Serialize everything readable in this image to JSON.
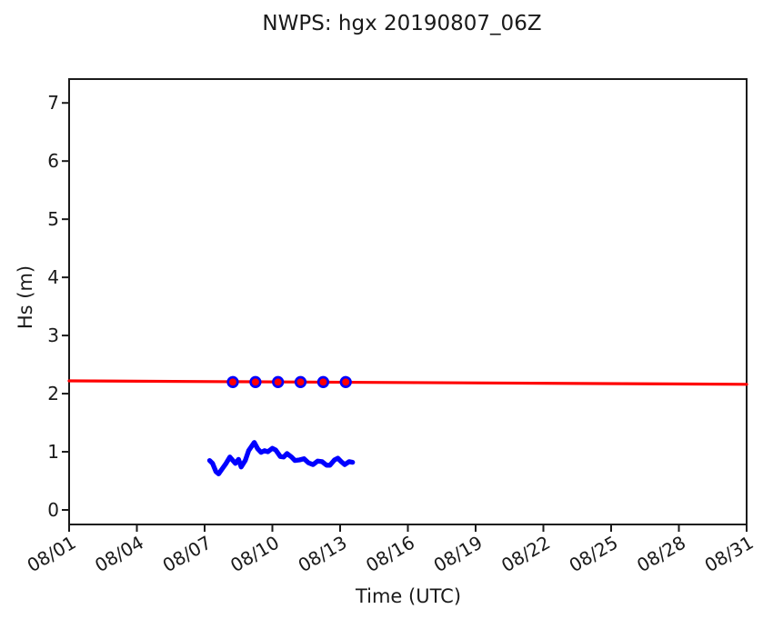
{
  "title": "NWPS: hgx 20190807_06Z",
  "chart_data": {
    "type": "line",
    "title": "NWPS: hgx 20190807_06Z",
    "xlabel": "Time (UTC)",
    "ylabel": "Hs (m)",
    "x_unit": "day of August 2019 (UTC)",
    "xlim": [
      1,
      31
    ],
    "ylim": [
      -0.25,
      7.41
    ],
    "grid": false,
    "legend_position": "none",
    "axis_color": "#1a1a1a",
    "x_ticks": [
      {
        "day": 1,
        "label": "08/01"
      },
      {
        "day": 4,
        "label": "08/04"
      },
      {
        "day": 7,
        "label": "08/07"
      },
      {
        "day": 10,
        "label": "08/10"
      },
      {
        "day": 13,
        "label": "08/13"
      },
      {
        "day": 16,
        "label": "08/16"
      },
      {
        "day": 19,
        "label": "08/19"
      },
      {
        "day": 22,
        "label": "08/22"
      },
      {
        "day": 25,
        "label": "08/25"
      },
      {
        "day": 28,
        "label": "08/28"
      },
      {
        "day": 31,
        "label": "08/31"
      }
    ],
    "y_ticks": [
      {
        "value": 0,
        "label": "0"
      },
      {
        "value": 1,
        "label": "1"
      },
      {
        "value": 2,
        "label": "2"
      },
      {
        "value": 3,
        "label": "3"
      },
      {
        "value": 4,
        "label": "4"
      },
      {
        "value": 5,
        "label": "5"
      },
      {
        "value": 6,
        "label": "6"
      },
      {
        "value": 7,
        "label": "7"
      }
    ],
    "series": [
      {
        "name": "forecast-hs-line",
        "kind": "line",
        "color": "#ff0000",
        "line_width": 3.2,
        "points": [
          [
            1,
            2.22
          ],
          [
            31,
            2.16
          ]
        ]
      },
      {
        "name": "forecast-hs-markers",
        "kind": "marker",
        "fill_color": "#ff0000",
        "edge_color": "#0000ff",
        "radius": 5.3,
        "edge_width": 2.7,
        "points": [
          [
            8.25,
            2.2
          ],
          [
            9.25,
            2.2
          ],
          [
            10.25,
            2.2
          ],
          [
            11.25,
            2.2
          ],
          [
            12.25,
            2.2
          ],
          [
            13.25,
            2.2
          ]
        ]
      },
      {
        "name": "observed-hs-line",
        "kind": "line",
        "color": "#0000ff",
        "line_width": 5.3,
        "points": [
          [
            7.22,
            0.85
          ],
          [
            7.35,
            0.8
          ],
          [
            7.5,
            0.66
          ],
          [
            7.62,
            0.62
          ],
          [
            7.8,
            0.72
          ],
          [
            7.95,
            0.8
          ],
          [
            8.12,
            0.91
          ],
          [
            8.36,
            0.8
          ],
          [
            8.5,
            0.87
          ],
          [
            8.62,
            0.74
          ],
          [
            8.8,
            0.85
          ],
          [
            8.95,
            1.02
          ],
          [
            9.2,
            1.16
          ],
          [
            9.35,
            1.05
          ],
          [
            9.5,
            0.99
          ],
          [
            9.65,
            1.02
          ],
          [
            9.8,
            1.0
          ],
          [
            10.0,
            1.06
          ],
          [
            10.15,
            1.03
          ],
          [
            10.35,
            0.92
          ],
          [
            10.5,
            0.91
          ],
          [
            10.65,
            0.97
          ],
          [
            10.85,
            0.91
          ],
          [
            11.0,
            0.85
          ],
          [
            11.2,
            0.86
          ],
          [
            11.4,
            0.88
          ],
          [
            11.6,
            0.81
          ],
          [
            11.8,
            0.78
          ],
          [
            12.0,
            0.84
          ],
          [
            12.2,
            0.83
          ],
          [
            12.4,
            0.77
          ],
          [
            12.55,
            0.77
          ],
          [
            12.75,
            0.86
          ],
          [
            12.9,
            0.89
          ],
          [
            13.05,
            0.83
          ],
          [
            13.2,
            0.78
          ],
          [
            13.4,
            0.83
          ],
          [
            13.55,
            0.82
          ]
        ]
      }
    ]
  }
}
